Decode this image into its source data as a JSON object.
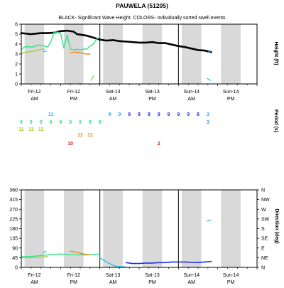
{
  "title": "PAUWELA (51205)",
  "subtitle": "BLACK- Significant Wave Height.  COLORS- Individually sorted swell events",
  "colors": {
    "background": "#ffffff",
    "shade": "#d9d9d9",
    "frame": "#000000",
    "black": "#000000",
    "green": "#33e28a",
    "yellowgreen": "#9ccf3a",
    "cyan": "#22c6e6",
    "orange": "#ff7f1a",
    "red": "#e0201b",
    "blue": "#1d2fe0",
    "skyblue": "#33a6ff",
    "lime": "#7fd64a"
  },
  "day_labels": [
    "Fri-12",
    "Fri-12",
    "Sat-13",
    "Sat-13",
    "Sun-14",
    "Sun-14"
  ],
  "ampm_labels": [
    "AM",
    "PM",
    "AM",
    "PM",
    "AM",
    "PM"
  ],
  "chart_data": [
    {
      "type": "line",
      "title": "BLACK- Significant Wave Height.  COLORS- Individually sorted swell events",
      "xlabel": "",
      "ylabel": "Height (ft)",
      "xlim": [
        0,
        72
      ],
      "ylim": [
        0,
        6
      ],
      "yticks": [
        0,
        1,
        2,
        3,
        4,
        5,
        6
      ],
      "grid": false,
      "series": [
        {
          "color": "black",
          "width": 2.6,
          "x": [
            0,
            3,
            6,
            8,
            10,
            12,
            14,
            16,
            17,
            18,
            20,
            22,
            24,
            26,
            28,
            30,
            32,
            34,
            36,
            38,
            40,
            42,
            44,
            46,
            48,
            50,
            52,
            54,
            56,
            58
          ],
          "y": [
            5.1,
            5.0,
            5.1,
            5.1,
            5.15,
            5.3,
            5.35,
            5.25,
            5.0,
            4.95,
            4.85,
            4.65,
            4.45,
            4.35,
            4.4,
            4.3,
            4.25,
            4.2,
            4.15,
            4.15,
            4.2,
            4.1,
            4.1,
            3.95,
            3.8,
            3.7,
            3.55,
            3.4,
            3.35,
            3.2
          ]
        },
        {
          "color": "green",
          "width": 1.4,
          "x": [
            0,
            1,
            2,
            3,
            4,
            5,
            6,
            7,
            8,
            9,
            10,
            11,
            12,
            13,
            14,
            15,
            16,
            17,
            18,
            19,
            20,
            21,
            22,
            23,
            24
          ],
          "y": [
            3.5,
            3.7,
            3.75,
            3.7,
            3.75,
            3.9,
            3.9,
            3.8,
            3.7,
            4.2,
            5.2,
            5.2,
            5.1,
            3.6,
            4.9,
            3.5,
            3.4,
            3.5,
            3.4,
            3.5,
            3.5,
            3.8,
            4.0,
            4.5,
            4.7
          ]
        },
        {
          "color": "yellowgreen",
          "width": 1.4,
          "x": [
            0,
            1,
            2,
            3,
            4,
            5,
            6,
            7
          ],
          "y": [
            3.05,
            3.15,
            3.2,
            3.25,
            3.3,
            3.4,
            3.45,
            3.5
          ]
        },
        {
          "color": "cyan",
          "width": 1.2,
          "x": [
            6.8,
            7.8
          ],
          "y": [
            3.25,
            3.3
          ]
        },
        {
          "color": "orange",
          "width": 1.4,
          "x": [
            15,
            17,
            19,
            20,
            21
          ],
          "y": [
            3.15,
            3.2,
            3.05,
            3.0,
            3.0
          ]
        },
        {
          "color": "lime",
          "width": 1.2,
          "x": [
            21.3,
            22.1
          ],
          "y": [
            0.35,
            0.85
          ]
        },
        {
          "color": "skyblue",
          "width": 1.2,
          "x": [
            56.8,
            57.8
          ],
          "y": [
            3.15,
            3.3
          ]
        },
        {
          "color": "cyan",
          "width": 1.2,
          "x": [
            56.8,
            57.8
          ],
          "y": [
            0.55,
            0.35
          ]
        }
      ]
    },
    {
      "type": "scatter",
      "ylabel": "Period (s)",
      "points": [
        {
          "x": 0,
          "row": 1,
          "label": "9",
          "color": "green"
        },
        {
          "x": 3,
          "row": 1,
          "label": "9",
          "color": "green"
        },
        {
          "x": 6,
          "row": 1,
          "label": "9",
          "color": "green"
        },
        {
          "x": 9,
          "row": 1,
          "label": "9",
          "color": "green"
        },
        {
          "x": 12,
          "row": 1,
          "label": "9",
          "color": "green"
        },
        {
          "x": 15,
          "row": 1,
          "label": "9",
          "color": "green"
        },
        {
          "x": 18,
          "row": 1,
          "label": "9",
          "color": "green"
        },
        {
          "x": 21,
          "row": 1,
          "label": "9",
          "color": "green"
        },
        {
          "x": 24,
          "row": 1,
          "label": "9",
          "color": "green"
        },
        {
          "x": 0,
          "row": 2,
          "label": "11",
          "color": "yellowgreen"
        },
        {
          "x": 3,
          "row": 2,
          "label": "11",
          "color": "yellowgreen"
        },
        {
          "x": 6,
          "row": 2,
          "label": "11",
          "color": "yellowgreen"
        },
        {
          "x": 9,
          "row": 0,
          "label": "11",
          "color": "cyan"
        },
        {
          "x": 18,
          "row": 3,
          "label": "11",
          "color": "orange"
        },
        {
          "x": 21,
          "row": 3,
          "label": "11",
          "color": "orange"
        },
        {
          "x": 15,
          "row": 4,
          "label": "10",
          "color": "red"
        },
        {
          "x": 27,
          "row": 0,
          "label": "9",
          "color": "skyblue"
        },
        {
          "x": 30,
          "row": 0,
          "label": "9",
          "color": "skyblue"
        },
        {
          "x": 33,
          "row": 0,
          "label": "9",
          "color": "blue"
        },
        {
          "x": 36,
          "row": 0,
          "label": "9",
          "color": "blue"
        },
        {
          "x": 39,
          "row": 0,
          "label": "9",
          "color": "blue"
        },
        {
          "x": 42,
          "row": 0,
          "label": "9",
          "color": "blue"
        },
        {
          "x": 45,
          "row": 0,
          "label": "9",
          "color": "blue"
        },
        {
          "x": 48,
          "row": 0,
          "label": "9",
          "color": "blue"
        },
        {
          "x": 51,
          "row": 0,
          "label": "9",
          "color": "blue"
        },
        {
          "x": 54,
          "row": 0,
          "label": "9",
          "color": "blue"
        },
        {
          "x": 57,
          "row": 0,
          "label": "3",
          "color": "skyblue"
        },
        {
          "x": 57,
          "row": 1,
          "label": "3",
          "color": "skyblue"
        },
        {
          "x": 42,
          "row": 4,
          "label": "2",
          "color": "red"
        }
      ]
    },
    {
      "type": "line",
      "xlabel": "",
      "ylabel": "Direction (deg)",
      "xlim": [
        0,
        72
      ],
      "ylim": [
        0,
        360
      ],
      "yticks": [
        0,
        45,
        90,
        135,
        180,
        225,
        270,
        315,
        360
      ],
      "right_ticks": [
        "N",
        "NE",
        "E",
        "SE",
        "S",
        "SW",
        "W",
        "NW",
        "N"
      ],
      "grid": false,
      "series": [
        {
          "color": "green",
          "width": 1.4,
          "x": [
            0,
            2,
            4,
            6,
            8,
            10,
            12,
            14,
            16,
            18,
            20,
            22,
            24
          ],
          "y": [
            50,
            50,
            52,
            55,
            58,
            60,
            62,
            60,
            59,
            58,
            58,
            60,
            62
          ]
        },
        {
          "color": "yellowgreen",
          "width": 1.4,
          "x": [
            0,
            2,
            4,
            6,
            8
          ],
          "y": [
            45,
            45,
            46,
            48,
            50
          ]
        },
        {
          "color": "cyan",
          "width": 1.2,
          "x": [
            6.5,
            7.6
          ],
          "y": [
            68,
            75
          ]
        },
        {
          "color": "orange",
          "width": 1.4,
          "x": [
            15,
            17,
            19,
            21
          ],
          "y": [
            75,
            70,
            62,
            58
          ]
        },
        {
          "color": "cyan",
          "width": 1.4,
          "x": [
            24,
            25,
            26,
            27,
            28,
            29,
            30,
            31,
            32
          ],
          "y": [
            45,
            35,
            25,
            18,
            10,
            5,
            3,
            3,
            2
          ]
        },
        {
          "color": "blue",
          "width": 1.6,
          "x": [
            32,
            34,
            36,
            38,
            40,
            42,
            44,
            46,
            48,
            50,
            52,
            54,
            56,
            58
          ],
          "y": [
            22,
            18,
            18,
            20,
            20,
            22,
            22,
            25,
            25,
            25,
            23,
            22,
            25,
            27
          ]
        },
        {
          "color": "skyblue",
          "width": 1.2,
          "x": [
            56.8,
            57.8
          ],
          "y": [
            215,
            220
          ]
        }
      ]
    }
  ]
}
